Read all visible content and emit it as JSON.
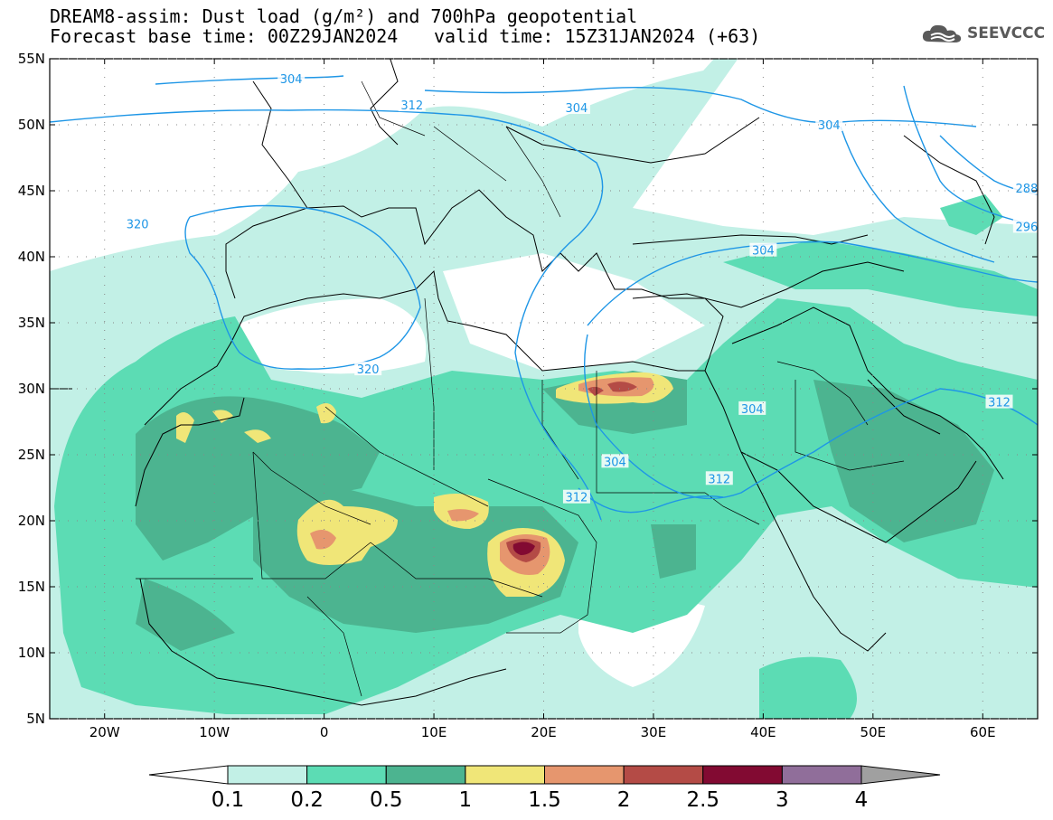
{
  "title": {
    "line1": "DREAM8-assim: Dust load (g/m²) and 700hPa geopotential",
    "line2": "Forecast base time: 00Z29JAN2024",
    "valid": "valid time: 15Z31JAN2024 (+63)"
  },
  "logo": {
    "text": "SEEVCCC",
    "icon": "cloud-icon"
  },
  "axes": {
    "lon_labels": [
      "20W",
      "10W",
      "0",
      "10E",
      "20E",
      "30E",
      "40E",
      "50E",
      "60E"
    ],
    "lat_labels": [
      "55N",
      "50N",
      "45N",
      "40N",
      "35N",
      "30N",
      "25N",
      "20N",
      "15N",
      "10N",
      "5N"
    ],
    "lon_range": [
      -25,
      65
    ],
    "lat_range": [
      5,
      55
    ]
  },
  "contour_labels": [
    {
      "text": "304",
      "lon": -3,
      "lat": 53.5
    },
    {
      "text": "304",
      "lon": 23,
      "lat": 51.3
    },
    {
      "text": "304",
      "lon": 46,
      "lat": 50
    },
    {
      "text": "312",
      "lon": 8,
      "lat": 51.5
    },
    {
      "text": "288",
      "lon": 64,
      "lat": 45.2
    },
    {
      "text": "296",
      "lon": 64,
      "lat": 42.3
    },
    {
      "text": "320",
      "lon": -17,
      "lat": 42.5
    },
    {
      "text": "304",
      "lon": 40,
      "lat": 40.5
    },
    {
      "text": "320",
      "lon": 4,
      "lat": 31.5
    },
    {
      "text": "312",
      "lon": 61.5,
      "lat": 29
    },
    {
      "text": "304",
      "lon": 39,
      "lat": 28.5
    },
    {
      "text": "304",
      "lon": 26.5,
      "lat": 24.5
    },
    {
      "text": "312",
      "lon": 36,
      "lat": 23.2
    },
    {
      "text": "312",
      "lon": 23,
      "lat": 21.8
    }
  ],
  "colorbar": {
    "labels": [
      "0.1",
      "0.2",
      "0.5",
      "1",
      "1.5",
      "2",
      "2.5",
      "3",
      "4"
    ],
    "colors": [
      "#c2f0e6",
      "#5cdcb4",
      "#4cb490",
      "#f0e678",
      "#e6966e",
      "#b44b46",
      "#820a32",
      "#906e9a",
      "#a0a0a0"
    ]
  },
  "colors": {
    "contour": "#1e96e6",
    "coast": "#000000"
  }
}
